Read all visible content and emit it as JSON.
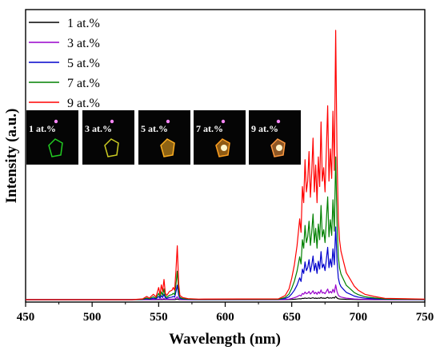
{
  "chart_data": {
    "type": "line",
    "xlabel": "Wavelength (nm)",
    "ylabel": "Intensity (a.u.)",
    "xlim": [
      450,
      750
    ],
    "ylim": [
      0,
      1.0
    ],
    "x_ticks": [
      450,
      500,
      550,
      600,
      650,
      700,
      750
    ],
    "y_ticks_visible": false,
    "grid": false,
    "legend_position": "top-left",
    "series": [
      {
        "name": "1 at.%",
        "color": "#000000",
        "scale": 0.012
      },
      {
        "name": "3 at.%",
        "color": "#9900cc",
        "scale": 0.055
      },
      {
        "name": "5 at.%",
        "color": "#0000cc",
        "scale": 0.27
      },
      {
        "name": "7 at.%",
        "color": "#008000",
        "scale": 0.53
      },
      {
        "name": "9 at.%",
        "color": "#ff0000",
        "scale": 1.0
      }
    ],
    "peak_profile": {
      "x": [
        450,
        530,
        538,
        541,
        543,
        546,
        548,
        550,
        551,
        552,
        553,
        554,
        555,
        556,
        558,
        560,
        561,
        562,
        563,
        564,
        565,
        566,
        568,
        572,
        580,
        640,
        645,
        648,
        650,
        652,
        654,
        656,
        657,
        658,
        659,
        660,
        661,
        662,
        663,
        664,
        665,
        666,
        667,
        668,
        669,
        670,
        671,
        672,
        673,
        674,
        675,
        676,
        677,
        678,
        679,
        680,
        681,
        682,
        683,
        684,
        685,
        686,
        687,
        689,
        691,
        694,
        697,
        700,
        705,
        712,
        720,
        750
      ],
      "y": [
        0,
        0,
        0.003,
        0.012,
        0.006,
        0.02,
        0.01,
        0.045,
        0.02,
        0.055,
        0.03,
        0.075,
        0.025,
        0.015,
        0.03,
        0.035,
        0.045,
        0.035,
        0.11,
        0.2,
        0.06,
        0.015,
        0.008,
        0.004,
        0.002,
        0.003,
        0.015,
        0.04,
        0.08,
        0.13,
        0.2,
        0.3,
        0.25,
        0.42,
        0.36,
        0.52,
        0.4,
        0.44,
        0.55,
        0.38,
        0.47,
        0.6,
        0.4,
        0.5,
        0.36,
        0.53,
        0.42,
        0.66,
        0.44,
        0.49,
        0.4,
        0.55,
        0.72,
        0.44,
        0.56,
        0.45,
        0.7,
        0.48,
        1.0,
        0.55,
        0.3,
        0.22,
        0.18,
        0.14,
        0.1,
        0.075,
        0.05,
        0.035,
        0.02,
        0.012,
        0.005,
        0.002
      ]
    },
    "inset": {
      "panels": [
        "1 at.%",
        "3 at.%",
        "5 at.%",
        "7 at.%",
        "9 at.%"
      ],
      "glow_colors": [
        "#22cc22",
        "#cccc22",
        "#ffb020",
        "#ffa020",
        "#ff9a40"
      ]
    }
  }
}
